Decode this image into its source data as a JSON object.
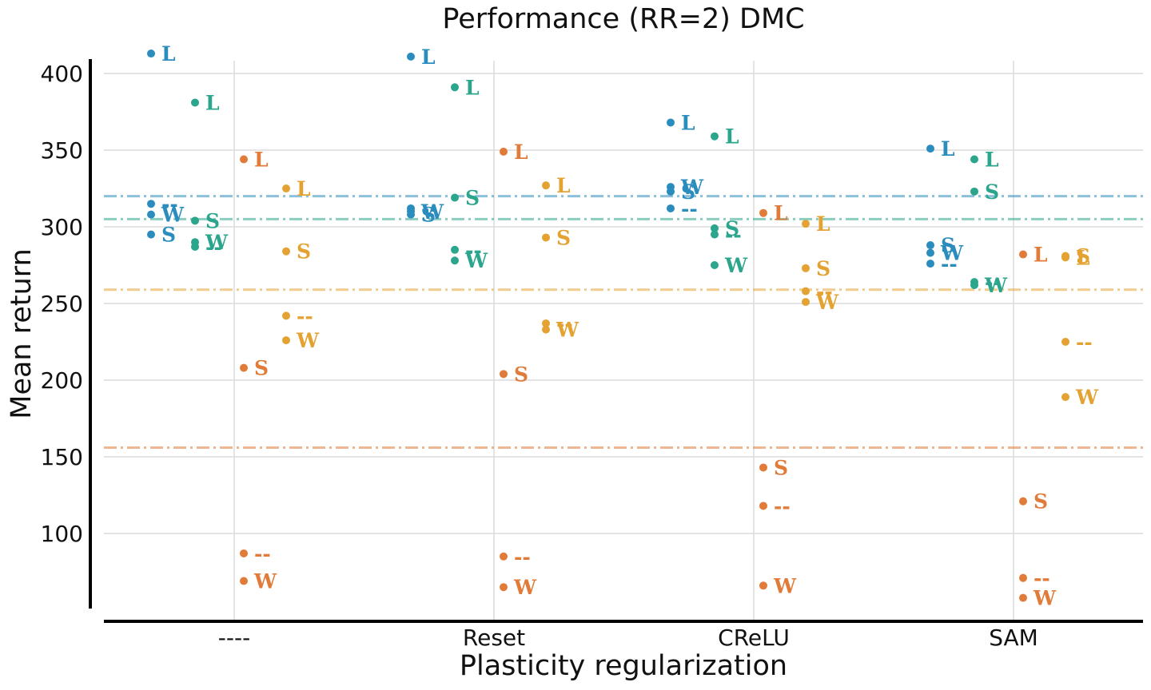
{
  "chart_data": {
    "type": "scatter",
    "title": "Performance (RR=2) DMC",
    "xlabel": "Plasticity regularization",
    "ylabel": "Mean return",
    "categories": [
      "----",
      "Reset",
      "CReLU",
      "SAM"
    ],
    "ylim": [
      50,
      410
    ],
    "yticks": [
      100,
      150,
      200,
      250,
      300,
      350,
      400
    ],
    "grid": true,
    "legend": "none",
    "series": [
      {
        "color": "#2b8cbe",
        "reference_line": 320,
        "points": [
          {
            "category": "----",
            "marker": "L",
            "value": 413
          },
          {
            "category": "----",
            "marker": "--",
            "value": 315
          },
          {
            "category": "----",
            "marker": "W",
            "value": 308
          },
          {
            "category": "----",
            "marker": "S",
            "value": 295
          },
          {
            "category": "Reset",
            "marker": "L",
            "value": 411
          },
          {
            "category": "Reset",
            "marker": "--",
            "value": 312
          },
          {
            "category": "Reset",
            "marker": "W",
            "value": 310
          },
          {
            "category": "Reset",
            "marker": "S",
            "value": 308
          },
          {
            "category": "CReLU",
            "marker": "L",
            "value": 368
          },
          {
            "category": "CReLU",
            "marker": "W",
            "value": 326
          },
          {
            "category": "CReLU",
            "marker": "S",
            "value": 323
          },
          {
            "category": "CReLU",
            "marker": "--",
            "value": 312
          },
          {
            "category": "SAM",
            "marker": "L",
            "value": 351
          },
          {
            "category": "SAM",
            "marker": "S",
            "value": 288
          },
          {
            "category": "SAM",
            "marker": "W",
            "value": 283
          },
          {
            "category": "SAM",
            "marker": "--",
            "value": 276
          }
        ]
      },
      {
        "color": "#2ca58d",
        "reference_line": 305,
        "points": [
          {
            "category": "----",
            "marker": "L",
            "value": 381
          },
          {
            "category": "----",
            "marker": "S",
            "value": 304
          },
          {
            "category": "----",
            "marker": "W",
            "value": 290
          },
          {
            "category": "----",
            "marker": "--",
            "value": 287
          },
          {
            "category": "Reset",
            "marker": "L",
            "value": 391
          },
          {
            "category": "Reset",
            "marker": "S",
            "value": 319
          },
          {
            "category": "Reset",
            "marker": "--",
            "value": 285
          },
          {
            "category": "Reset",
            "marker": "W",
            "value": 278
          },
          {
            "category": "CReLU",
            "marker": "L",
            "value": 359
          },
          {
            "category": "CReLU",
            "marker": "S",
            "value": 299
          },
          {
            "category": "CReLU",
            "marker": "--",
            "value": 295
          },
          {
            "category": "CReLU",
            "marker": "W",
            "value": 275
          },
          {
            "category": "SAM",
            "marker": "L",
            "value": 344
          },
          {
            "category": "SAM",
            "marker": "S",
            "value": 323
          },
          {
            "category": "SAM",
            "marker": "--",
            "value": 264
          },
          {
            "category": "SAM",
            "marker": "W",
            "value": 262
          }
        ]
      },
      {
        "color": "#e07b39",
        "reference_line": 156,
        "points": [
          {
            "category": "----",
            "marker": "L",
            "value": 344
          },
          {
            "category": "----",
            "marker": "S",
            "value": 208
          },
          {
            "category": "----",
            "marker": "--",
            "value": 87
          },
          {
            "category": "----",
            "marker": "W",
            "value": 69
          },
          {
            "category": "Reset",
            "marker": "L",
            "value": 349
          },
          {
            "category": "Reset",
            "marker": "S",
            "value": 204
          },
          {
            "category": "Reset",
            "marker": "--",
            "value": 85
          },
          {
            "category": "Reset",
            "marker": "W",
            "value": 65
          },
          {
            "category": "CReLU",
            "marker": "L",
            "value": 309
          },
          {
            "category": "CReLU",
            "marker": "S",
            "value": 143
          },
          {
            "category": "CReLU",
            "marker": "--",
            "value": 118
          },
          {
            "category": "CReLU",
            "marker": "W",
            "value": 66
          },
          {
            "category": "SAM",
            "marker": "L",
            "value": 282
          },
          {
            "category": "SAM",
            "marker": "S",
            "value": 121
          },
          {
            "category": "SAM",
            "marker": "--",
            "value": 71
          },
          {
            "category": "SAM",
            "marker": "W",
            "value": 58
          }
        ]
      },
      {
        "color": "#e3a232",
        "reference_line": 259,
        "points": [
          {
            "category": "----",
            "marker": "L",
            "value": 325
          },
          {
            "category": "----",
            "marker": "S",
            "value": 284
          },
          {
            "category": "----",
            "marker": "--",
            "value": 242
          },
          {
            "category": "----",
            "marker": "W",
            "value": 226
          },
          {
            "category": "Reset",
            "marker": "L",
            "value": 327
          },
          {
            "category": "Reset",
            "marker": "S",
            "value": 293
          },
          {
            "category": "Reset",
            "marker": "--",
            "value": 237
          },
          {
            "category": "Reset",
            "marker": "W",
            "value": 233
          },
          {
            "category": "CReLU",
            "marker": "L",
            "value": 302
          },
          {
            "category": "CReLU",
            "marker": "S",
            "value": 273
          },
          {
            "category": "CReLU",
            "marker": "--",
            "value": 258
          },
          {
            "category": "CReLU",
            "marker": "W",
            "value": 251
          },
          {
            "category": "SAM",
            "marker": "S",
            "value": 281
          },
          {
            "category": "SAM",
            "marker": "L",
            "value": 280
          },
          {
            "category": "SAM",
            "marker": "--",
            "value": 225
          },
          {
            "category": "SAM",
            "marker": "W",
            "value": 189
          }
        ]
      }
    ]
  }
}
